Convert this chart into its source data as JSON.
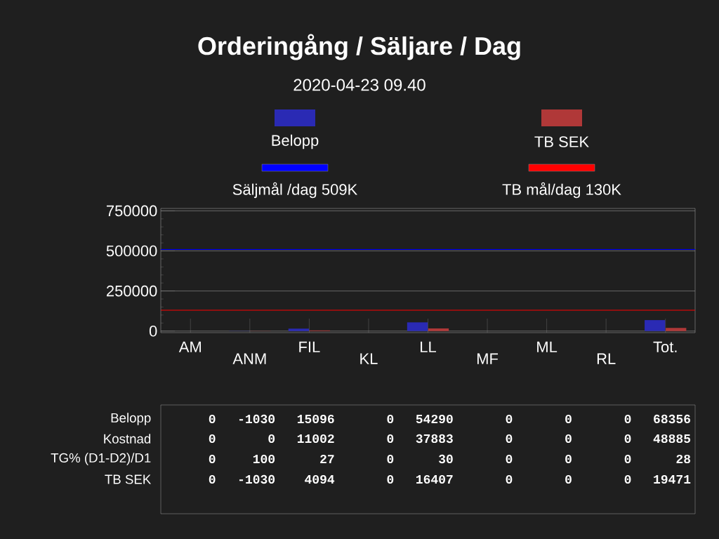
{
  "chart_data": {
    "type": "bar",
    "title": "Orderingång / Säljare / Dag",
    "subtitle": "2020-04-23 09.40",
    "categories": [
      "AM",
      "ANM",
      "FIL",
      "KL",
      "LL",
      "MF",
      "ML",
      "RL",
      "Tot."
    ],
    "series": [
      {
        "name": "Belopp",
        "color": "#2a2ab4",
        "values": [
          0,
          -1030,
          15096,
          0,
          54290,
          0,
          0,
          0,
          68356
        ]
      },
      {
        "name": "TB SEK",
        "color": "#b03838",
        "values": [
          0,
          -1030,
          4094,
          0,
          16407,
          0,
          0,
          0,
          19471
        ]
      }
    ],
    "ylim": [
      -10000,
      765000
    ],
    "yticks": [
      0,
      250000,
      500000,
      750000
    ],
    "grid": "y",
    "ref_lines": [
      {
        "axis": "y",
        "value": 509000,
        "label": "Säljmål /dag 509K",
        "color": "#0000ff"
      },
      {
        "axis": "y",
        "value": 130000,
        "label": "TB mål/dag 130K",
        "color": "#ff0000"
      }
    ],
    "legend": "top",
    "data_labels": true,
    "annotations": [
      "Kostnad",
      "0",
      "0",
      "11002",
      "0",
      "37883",
      "0",
      "0",
      "0",
      "48885",
      "TG% (D1-D2)/D1",
      "0",
      "100",
      "27",
      "0",
      "30",
      "0",
      "0",
      "0",
      "28"
    ]
  }
}
